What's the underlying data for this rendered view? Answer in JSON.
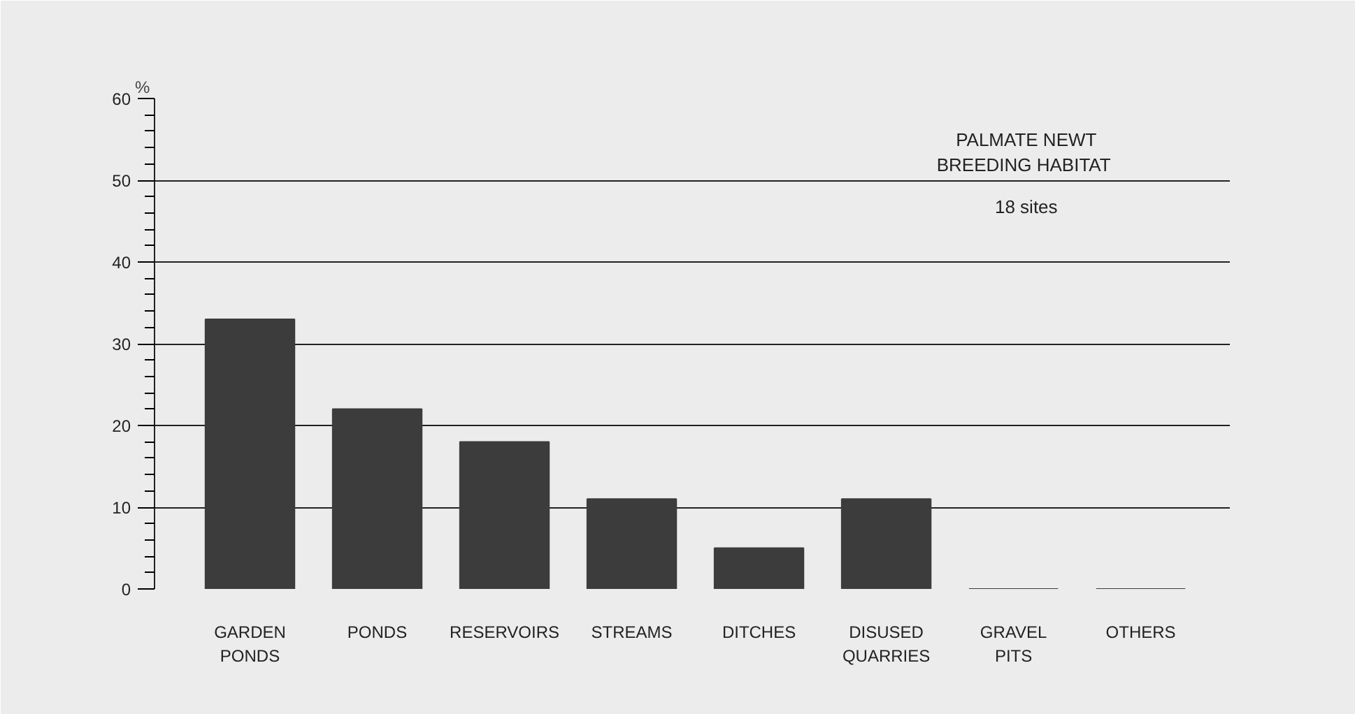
{
  "chart_data": {
    "type": "bar",
    "title": "PALMATE NEWT\nBREEDING  HABITAT",
    "subtitle": "18 sites",
    "ylabel": "%",
    "categories": [
      "GARDEN\nPONDS",
      "PONDS",
      "RESERVOIRS",
      "STREAMS",
      "DITCHES",
      "DISUSED\nQUARRIES",
      "GRAVEL\nPITS",
      "OTHERS"
    ],
    "values": [
      33,
      22,
      18,
      11,
      5,
      11,
      0,
      0
    ],
    "color": "#3c3c3c",
    "ylim": [
      0,
      60
    ],
    "yticks": [
      0,
      10,
      20,
      30,
      40,
      50,
      60
    ],
    "grid": "y"
  }
}
